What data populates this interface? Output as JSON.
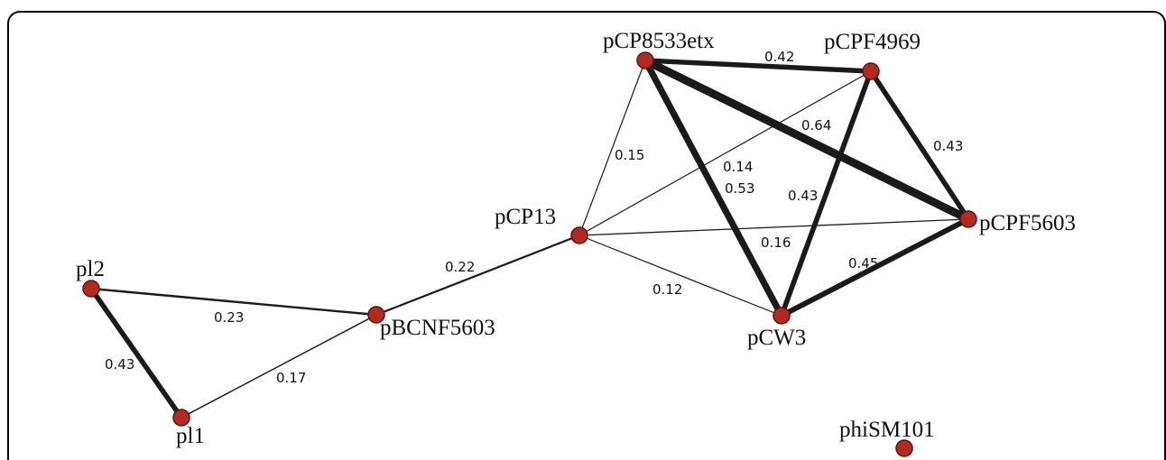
{
  "nodes": [
    {
      "id": "pCP8533etx",
      "label": "pCP8533etx"
    },
    {
      "id": "pCPF4969",
      "label": "pCPF4969"
    },
    {
      "id": "pCP13",
      "label": "pCP13"
    },
    {
      "id": "pCPF5603",
      "label": "pCPF5603"
    },
    {
      "id": "pl2",
      "label": "pl2"
    },
    {
      "id": "pBCNF5603",
      "label": "pBCNF5603"
    },
    {
      "id": "pCW3",
      "label": "pCW3"
    },
    {
      "id": "pl1",
      "label": "pl1"
    },
    {
      "id": "phiSM101",
      "label": "phiSM101"
    }
  ],
  "edges": [
    {
      "from": "pCP8533etx",
      "to": "pCPF4969",
      "weight": "0.42"
    },
    {
      "from": "pCP8533etx",
      "to": "pCPF5603",
      "weight": "0.64"
    },
    {
      "from": "pCPF4969",
      "to": "pCPF5603",
      "weight": "0.43"
    },
    {
      "from": "pCP8533etx",
      "to": "pCP13",
      "weight": "0.15"
    },
    {
      "from": "pCPF4969",
      "to": "pCP13",
      "weight": "0.14"
    },
    {
      "from": "pCP8533etx",
      "to": "pCW3",
      "weight": "0.53"
    },
    {
      "from": "pCPF4969",
      "to": "pCW3",
      "weight": "0.43"
    },
    {
      "from": "pCP13",
      "to": "pCPF5603",
      "weight": "0.16"
    },
    {
      "from": "pCW3",
      "to": "pCPF5603",
      "weight": "0.45"
    },
    {
      "from": "pCP13",
      "to": "pCW3",
      "weight": "0.12"
    },
    {
      "from": "pCP13",
      "to": "pBCNF5603",
      "weight": "0.22"
    },
    {
      "from": "pl2",
      "to": "pBCNF5603",
      "weight": "0.23"
    },
    {
      "from": "pl2",
      "to": "pl1",
      "weight": "0.43"
    },
    {
      "from": "pl1",
      "to": "pBCNF5603",
      "weight": "0.17"
    }
  ]
}
